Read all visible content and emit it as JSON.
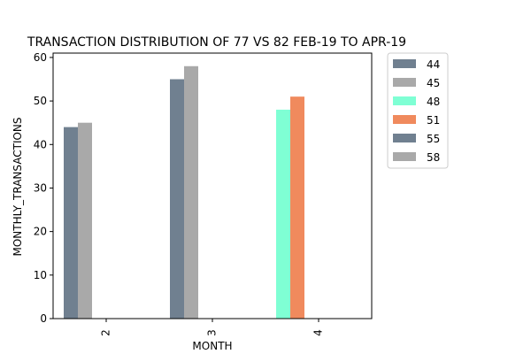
{
  "chart_data": {
    "type": "bar",
    "title": "TRANSACTION DISTRIBUTION OF 77 VS 82 FEB-19 TO APR-19",
    "xlabel": "MONTH",
    "ylabel": "MONTHLY_TRANSACTIONS",
    "ylim": [
      0,
      61
    ],
    "yticks": [
      0,
      10,
      20,
      30,
      40,
      50,
      60
    ],
    "categories": [
      "2",
      "3",
      "4"
    ],
    "legend_position": "outside-top-right",
    "grid": false,
    "bars": [
      {
        "category": "2",
        "slot": 0,
        "value": 44,
        "color": "#708090"
      },
      {
        "category": "2",
        "slot": 1,
        "value": 45,
        "color": "#a9a9a9"
      },
      {
        "category": "3",
        "slot": 0,
        "value": 55,
        "color": "#708090"
      },
      {
        "category": "3",
        "slot": 1,
        "value": 58,
        "color": "#a9a9a9"
      },
      {
        "category": "4",
        "slot": 0,
        "value": 48,
        "color": "#7fffd4"
      },
      {
        "category": "4",
        "slot": 1,
        "value": 51,
        "color": "#f08a5d"
      }
    ],
    "legend": [
      {
        "label": "44",
        "color": "#708090"
      },
      {
        "label": "45",
        "color": "#a9a9a9"
      },
      {
        "label": "48",
        "color": "#7fffd4"
      },
      {
        "label": "51",
        "color": "#f08a5d"
      },
      {
        "label": "55",
        "color": "#708090"
      },
      {
        "label": "58",
        "color": "#a9a9a9"
      }
    ]
  }
}
